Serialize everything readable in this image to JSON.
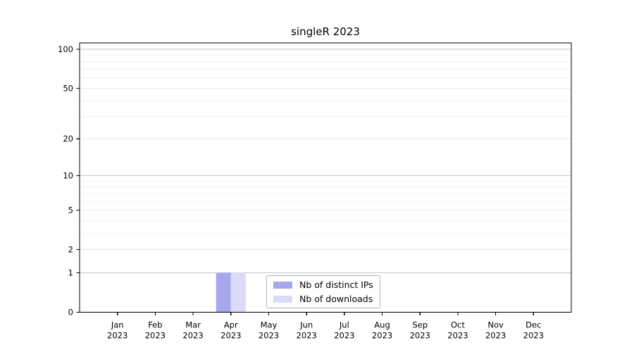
{
  "chart_data": {
    "type": "bar",
    "title": "singleR 2023",
    "categories": [
      "Jan",
      "Feb",
      "Mar",
      "Apr",
      "May",
      "Jun",
      "Jul",
      "Aug",
      "Sep",
      "Oct",
      "Nov",
      "Dec"
    ],
    "category_year": "2023",
    "series": [
      {
        "name": "Nb of distinct IPs",
        "color": "#a7a7f0",
        "values": [
          0,
          0,
          0,
          1,
          0,
          0,
          0,
          0,
          0,
          0,
          0,
          0
        ]
      },
      {
        "name": "Nb of downloads",
        "color": "#dbdbf8",
        "values": [
          0,
          0,
          0,
          1,
          0,
          0,
          0,
          0,
          0,
          0,
          0,
          0
        ]
      }
    ],
    "xlabel": "",
    "ylabel": "",
    "yscale": "log1p",
    "ylim": [
      0,
      112
    ],
    "yticks": [
      0,
      1,
      2,
      5,
      10,
      20,
      50,
      100
    ],
    "minor_grid_values": [
      3,
      4,
      6,
      7,
      8,
      9,
      30,
      40,
      60,
      70,
      80,
      90
    ],
    "grid": true,
    "legend_position": "inside-bottom-center"
  },
  "style_colors": {
    "decade_grid": "#c6c6c6",
    "labeled_grid": "#e7e7e7",
    "minor_grid": "#f0f0f0",
    "spine": "#000000",
    "tick_text": "#000000"
  }
}
